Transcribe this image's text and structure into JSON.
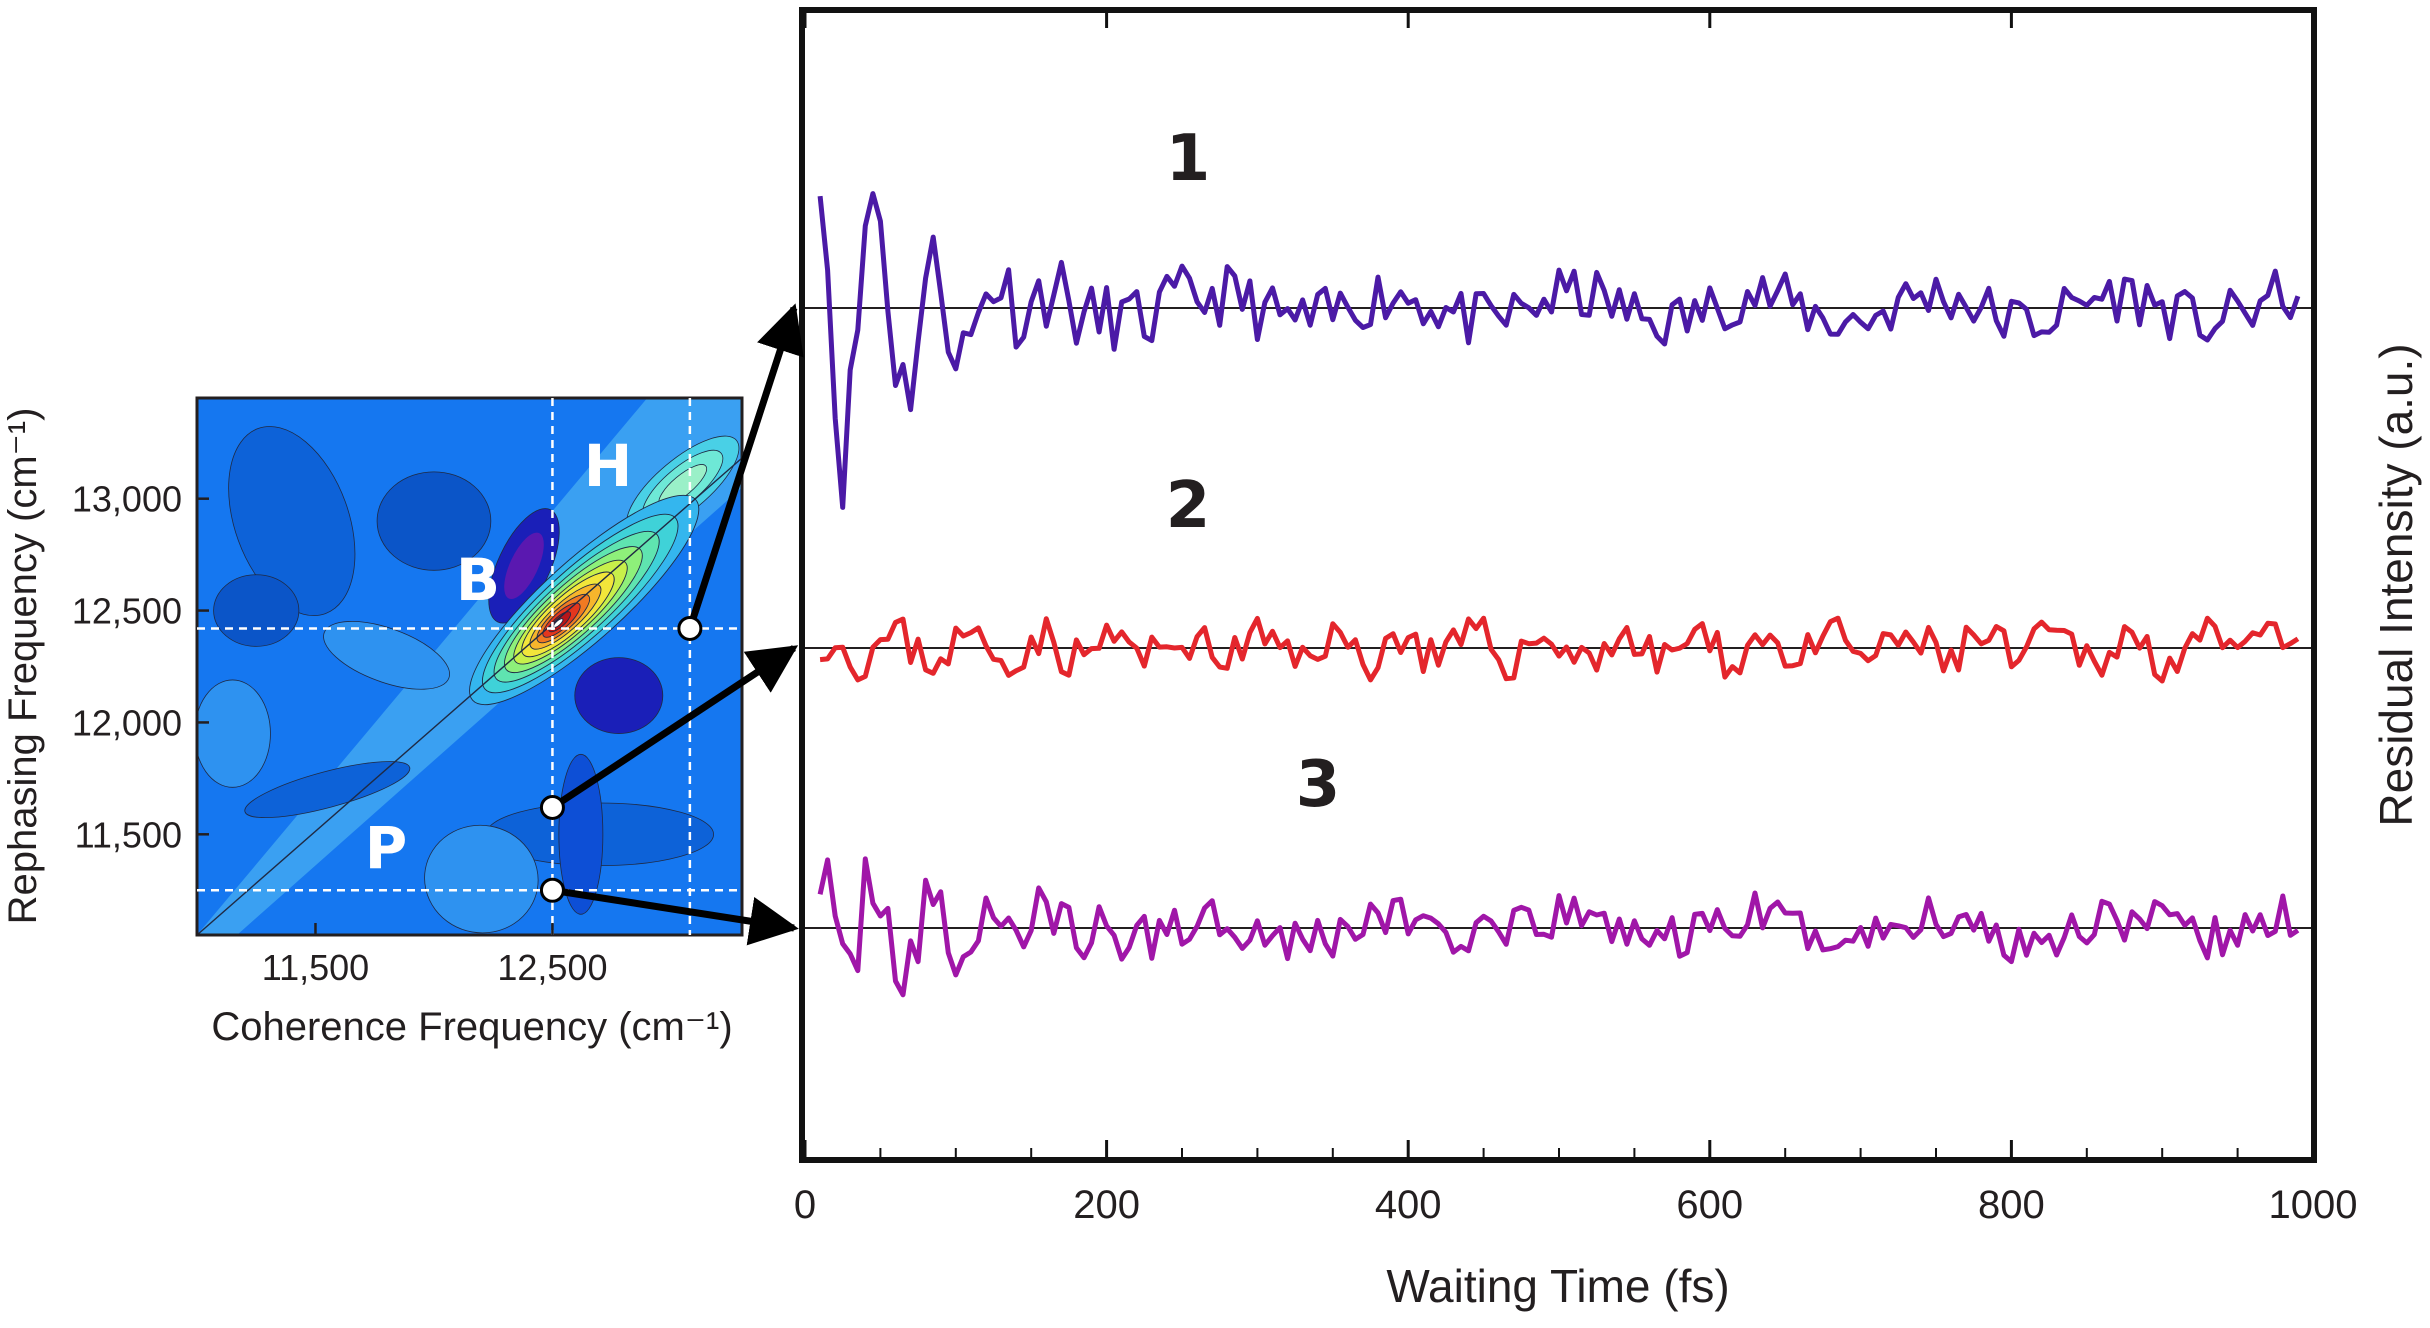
{
  "chart_data": [
    {
      "type": "line",
      "title": "",
      "xlabel": "Waiting Time (fs)",
      "ylabel": "Residual Intensity (a.u.)",
      "xlim": [
        0,
        1000
      ],
      "xticks": [
        0,
        200,
        400,
        600,
        800,
        1000
      ],
      "xtick_labels": [
        "0",
        "200",
        "400",
        "600",
        "800",
        "1000"
      ],
      "grid": false,
      "legend": "none",
      "series": [
        {
          "name": "1",
          "color": "#4b1aa6",
          "seed": 11,
          "decay": 0.52,
          "noise": 0.11,
          "amp_early": 1.0
        },
        {
          "name": "2",
          "color": "#e4262c",
          "seed": 23,
          "decay": 0.0,
          "noise": 0.16,
          "amp_early": 0.0
        },
        {
          "name": "3",
          "color": "#a016a8",
          "seed": 37,
          "decay": 0.55,
          "noise": 0.13,
          "amp_early": 0.7
        }
      ]
    },
    {
      "type": "heatmap",
      "title": "",
      "xlabel": "Coherence Frequency (cm⁻¹)",
      "ylabel": "Rephasing Frequency (cm⁻¹)",
      "xlim": [
        11000,
        13300
      ],
      "ylim": [
        11050,
        13450
      ],
      "xticks": [
        11500,
        12500
      ],
      "xtick_labels": [
        "11,500",
        "12,500"
      ],
      "yticks": [
        11500,
        12000,
        12500,
        13000
      ],
      "ytick_labels": [
        "11,500",
        "12,000",
        "12,500",
        "13,000"
      ],
      "regions": [
        {
          "label": "B",
          "x": 12500,
          "y": 12420
        },
        {
          "label": "H",
          "x": 13050,
          "y": 13050
        },
        {
          "label": "P",
          "x": 11250,
          "y": 11270
        }
      ],
      "markers": [
        {
          "trace": "1",
          "x": 13080,
          "y": 12420
        },
        {
          "trace": "2",
          "x": 12500,
          "y": 11620
        },
        {
          "trace": "3",
          "x": 12500,
          "y": 11250
        }
      ]
    }
  ]
}
